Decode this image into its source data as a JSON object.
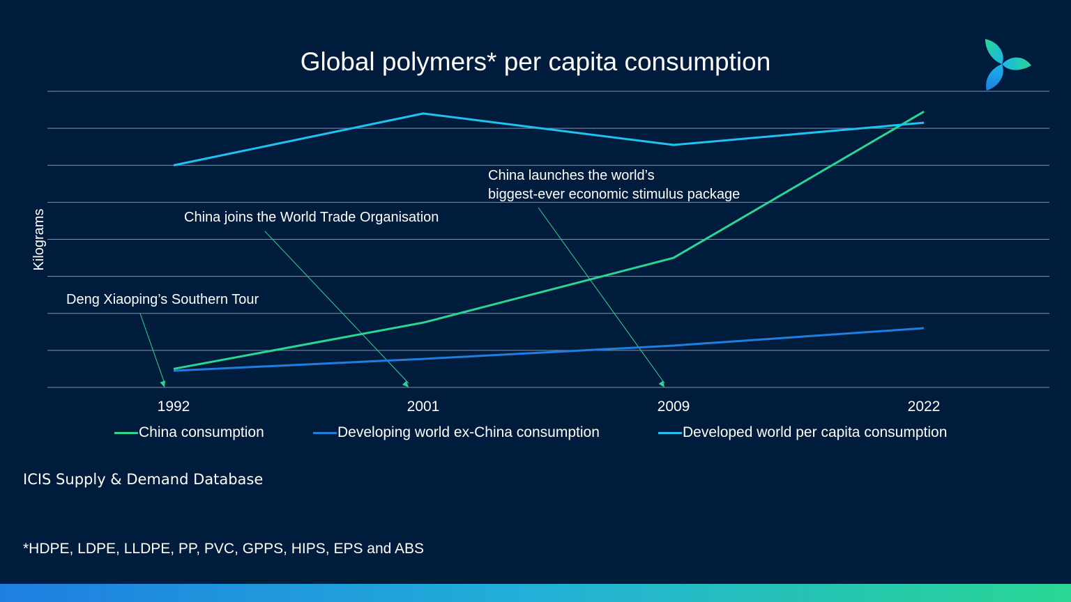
{
  "title": "Global polymers* per capita consumption",
  "logo": {
    "name": "trefoil-logo",
    "colors": [
      "#2ad693",
      "#1ab6e8",
      "#1e7fe0"
    ]
  },
  "chart_data": {
    "type": "line",
    "title": "",
    "xlabel": "",
    "ylabel": "Kilograms",
    "categories": [
      "1992",
      "2001",
      "2009",
      "2022"
    ],
    "ylim": [
      0,
      8
    ],
    "grid": true,
    "y_tick_labels_shown": false,
    "legend_position": "bottom",
    "series": [
      {
        "name": "China consumption",
        "color": "#2ad693",
        "values": [
          0.5,
          1.75,
          3.5,
          7.45
        ]
      },
      {
        "name": "Developing world ex-China consumption",
        "color": "#1e7fe0",
        "values": [
          0.45,
          0.77,
          1.13,
          1.6
        ]
      },
      {
        "name": "Developed world per capita consumption",
        "color": "#1ec3f0",
        "values": [
          6.0,
          7.4,
          6.55,
          7.15
        ]
      }
    ],
    "annotations": [
      {
        "lines": [
          "Deng Xiaoping’s Southern Tour"
        ],
        "x": "1992"
      },
      {
        "lines": [
          "China joins the World Trade Organisation"
        ],
        "x": "2001"
      },
      {
        "lines": [
          "China launches the world’s",
          "biggest-ever economic stimulus package"
        ],
        "x": "2009"
      }
    ]
  },
  "source": "ICIS Supply & Demand Database",
  "footnote": "*HDPE, LDPE, LLDPE, PP, PVC, GPPS, HIPS, EPS and ABS"
}
